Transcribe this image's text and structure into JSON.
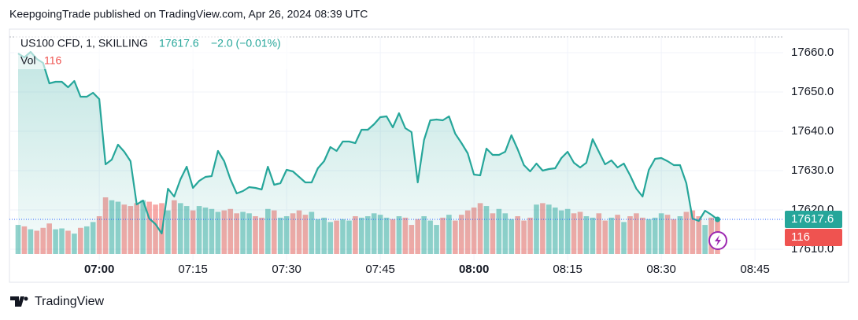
{
  "header": {
    "publisher": "KeepgoingTrade published on TradingView.com, Apr 26, 2024 08:39 UTC",
    "symbol": "US100 CFD, 1, SKILLING",
    "last": "17617.6",
    "change": "−2.0 (−0.01%)",
    "volume_label": "Vol",
    "volume_last": "116"
  },
  "footer": {
    "brand": "TradingView"
  },
  "chart_data": {
    "type": "line",
    "categories": [
      "06:47",
      "06:48",
      "06:49",
      "06:50",
      "06:51",
      "06:52",
      "06:53",
      "06:54",
      "06:55",
      "06:56",
      "06:57",
      "06:58",
      "06:59",
      "07:00",
      "07:01",
      "07:02",
      "07:03",
      "07:04",
      "07:05",
      "07:06",
      "07:07",
      "07:08",
      "07:09",
      "07:10",
      "07:11",
      "07:12",
      "07:13",
      "07:14",
      "07:15",
      "07:16",
      "07:17",
      "07:18",
      "07:19",
      "07:20",
      "07:21",
      "07:22",
      "07:23",
      "07:24",
      "07:25",
      "07:26",
      "07:27",
      "07:28",
      "07:29",
      "07:30",
      "07:31",
      "07:32",
      "07:33",
      "07:34",
      "07:35",
      "07:36",
      "07:37",
      "07:38",
      "07:39",
      "07:40",
      "07:41",
      "07:42",
      "07:43",
      "07:44",
      "07:45",
      "07:46",
      "07:47",
      "07:48",
      "07:49",
      "07:50",
      "07:51",
      "07:52",
      "07:53",
      "07:54",
      "07:55",
      "07:56",
      "07:57",
      "07:58",
      "07:59",
      "08:00",
      "08:01",
      "08:02",
      "08:03",
      "08:04",
      "08:05",
      "08:06",
      "08:07",
      "08:08",
      "08:09",
      "08:10",
      "08:11",
      "08:12",
      "08:13",
      "08:14",
      "08:15",
      "08:16",
      "08:17",
      "08:18",
      "08:19",
      "08:20",
      "08:21",
      "08:22",
      "08:23",
      "08:24",
      "08:25",
      "08:26",
      "08:27",
      "08:28",
      "08:29",
      "08:30",
      "08:31",
      "08:32",
      "08:33",
      "08:34",
      "08:35",
      "08:36",
      "08:37",
      "08:38",
      "08:39"
    ],
    "series": [
      {
        "name": "US100 CFD",
        "color": "#26a69a",
        "values": [
          17659.8,
          17658.8,
          17660.2,
          17658.4,
          17657.4,
          17652.2,
          17652.6,
          17652.6,
          17651.2,
          17652.8,
          17648.8,
          17648.8,
          17649.8,
          17648.2,
          17631.6,
          17632.8,
          17636.6,
          17634.8,
          17632.4,
          17621.4,
          17622.4,
          17617.8,
          17616.4,
          17614.0,
          17625.4,
          17623.4,
          17627.8,
          17631.0,
          17625.6,
          17627.4,
          17628.4,
          17628.6,
          17635.0,
          17632.4,
          17627.8,
          17624.2,
          17624.8,
          17625.8,
          17625.6,
          17625.2,
          17631.0,
          17626.4,
          17626.8,
          17630.2,
          17629.8,
          17628.4,
          17627.0,
          17627.0,
          17630.6,
          17632.4,
          17636.0,
          17635.0,
          17637.4,
          17637.4,
          17637.0,
          17640.4,
          17640.4,
          17641.8,
          17643.6,
          17643.8,
          17641.0,
          17644.6,
          17640.8,
          17639.8,
          17627.0,
          17637.8,
          17642.8,
          17643.0,
          17642.8,
          17643.8,
          17639.4,
          17637.0,
          17634.4,
          17629.0,
          17628.8,
          17635.6,
          17634.0,
          17634.0,
          17634.8,
          17639.0,
          17635.4,
          17631.4,
          17629.8,
          17631.8,
          17630.0,
          17630.4,
          17630.6,
          17633.2,
          17634.8,
          17632.0,
          17630.8,
          17632.0,
          17638.0,
          17634.8,
          17631.6,
          17632.6,
          17630.8,
          17631.8,
          17628.8,
          17625.4,
          17623.4,
          17630.2,
          17633.0,
          17633.2,
          17632.4,
          17631.4,
          17631.4,
          17626.8,
          17617.8,
          17617.2,
          17619.8,
          17618.8,
          17617.6
        ]
      }
    ],
    "volume": {
      "name": "Vol",
      "up_color": "#26a69a",
      "down_color": "#ef5350",
      "values": [
        100,
        95,
        85,
        80,
        90,
        105,
        85,
        88,
        80,
        70,
        90,
        95,
        110,
        130,
        195,
        185,
        180,
        170,
        165,
        175,
        185,
        180,
        170,
        175,
        150,
        185,
        175,
        165,
        150,
        165,
        160,
        155,
        145,
        150,
        155,
        140,
        145,
        140,
        130,
        125,
        155,
        150,
        125,
        130,
        140,
        150,
        135,
        145,
        120,
        125,
        110,
        115,
        120,
        115,
        130,
        125,
        130,
        140,
        135,
        125,
        120,
        130,
        125,
        100,
        120,
        130,
        115,
        100,
        125,
        135,
        115,
        135,
        150,
        160,
        175,
        165,
        140,
        155,
        140,
        120,
        130,
        115,
        125,
        170,
        175,
        170,
        160,
        150,
        155,
        140,
        145,
        130,
        125,
        140,
        115,
        125,
        135,
        110,
        130,
        140,
        125,
        120,
        125,
        140,
        135,
        120,
        130,
        145,
        150,
        130,
        100,
        125,
        116
      ]
    },
    "xticks": [
      "07:00",
      "07:15",
      "07:30",
      "07:45",
      "08:00",
      "08:15",
      "08:30",
      "08:45"
    ],
    "ylim": [
      17608.8,
      17664
    ],
    "yticks": [
      17610,
      17620,
      17630,
      17640,
      17650,
      {
        "value": 17660,
        "label": "17660.0"
      }
    ],
    "ytick_labels": [
      {
        "value": 17610,
        "label": "17610.0"
      },
      {
        "value": 17620,
        "label": "17620.0"
      },
      {
        "value": 17630,
        "label": "17630.0"
      },
      {
        "value": 17640,
        "label": "17640.0"
      },
      {
        "value": 17650,
        "label": "17650.0"
      }
    ],
    "grid": true
  }
}
